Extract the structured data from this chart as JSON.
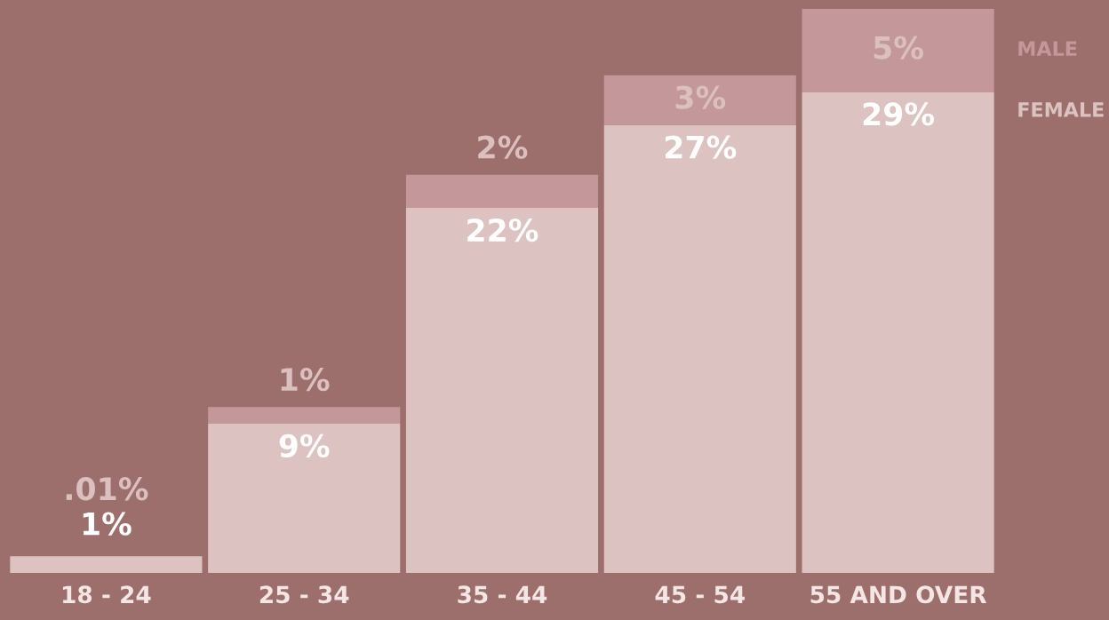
{
  "chart_data": {
    "type": "bar",
    "stacked": true,
    "categories": [
      "18 - 24",
      "25 - 34",
      "35 - 44",
      "45 - 54",
      "55 AND OVER"
    ],
    "series": [
      {
        "name": "FEMALE",
        "color": "#dcc3c1",
        "values": [
          1,
          9,
          22,
          27,
          29
        ],
        "value_labels": [
          "1%",
          "9%",
          "22%",
          "27%",
          "29%"
        ]
      },
      {
        "name": "MALE",
        "color": "#c4979a",
        "values": [
          0.01,
          1,
          2,
          3,
          5
        ],
        "value_labels": [
          ".01%",
          "1%",
          "2%",
          "3%",
          "5%"
        ]
      }
    ],
    "ylim": [
      0,
      34
    ],
    "legend": "right",
    "grid": false
  }
}
